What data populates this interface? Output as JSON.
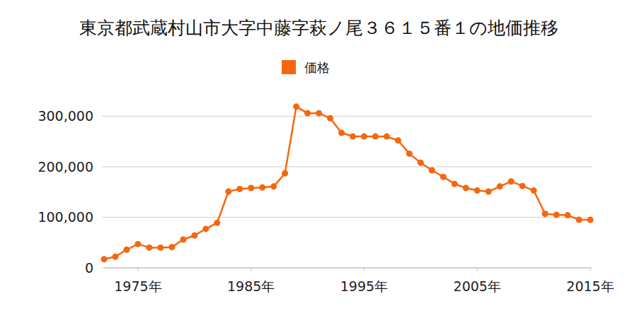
{
  "chart_data": {
    "type": "line",
    "title": "東京都武蔵村山市大字中藤字萩ノ尾３６１５番１の地価推移",
    "x": [
      1972,
      1973,
      1974,
      1975,
      1976,
      1977,
      1978,
      1979,
      1980,
      1981,
      1982,
      1983,
      1984,
      1985,
      1986,
      1987,
      1988,
      1989,
      1990,
      1991,
      1992,
      1993,
      1994,
      1995,
      1996,
      1997,
      1998,
      1999,
      2000,
      2001,
      2002,
      2003,
      2004,
      2005,
      2006,
      2007,
      2008,
      2009,
      2010,
      2011,
      2012,
      2013,
      2014,
      2015
    ],
    "series": [
      {
        "name": "価格",
        "color": "#f5670e",
        "marker": "circle",
        "values": [
          17000,
          22000,
          36000,
          47000,
          40000,
          40000,
          41000,
          56000,
          64000,
          77000,
          89000,
          151000,
          156000,
          158000,
          159000,
          161000,
          187000,
          319000,
          306000,
          306000,
          296000,
          267000,
          260000,
          260000,
          260000,
          260000,
          252000,
          226000,
          208000,
          193000,
          180000,
          166000,
          158000,
          153000,
          151000,
          161000,
          171000,
          162000,
          153000,
          107000,
          105000,
          104000,
          95000,
          95000
        ]
      }
    ],
    "xlim": [
      1972,
      2015
    ],
    "xticks": [
      {
        "value": 1975,
        "label": "1975年"
      },
      {
        "value": 1985,
        "label": "1985年"
      },
      {
        "value": 1995,
        "label": "1995年"
      },
      {
        "value": 2005,
        "label": "2005年"
      },
      {
        "value": 2015,
        "label": "2015年"
      }
    ],
    "ylim": [
      0,
      330000
    ],
    "yticks": [
      0,
      {
        "value": 100000,
        "label": "100,000"
      },
      {
        "value": 200000,
        "label": "200,000"
      },
      {
        "value": 300000,
        "label": "300,000"
      }
    ],
    "grid": true,
    "legend": "top"
  }
}
